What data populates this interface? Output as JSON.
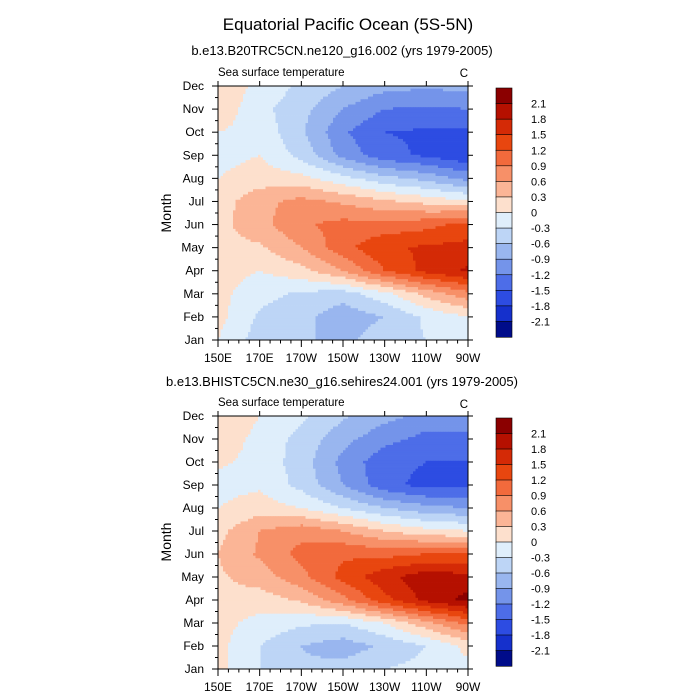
{
  "figure": {
    "title": "Equatorial Pacific Ocean (5S-5N)"
  },
  "chart_data": [
    {
      "type": "heatmap",
      "title": "b.e13.B20TRC5CN.ne120_g16.002 (yrs 1979-2005)",
      "left_label": "Sea surface temperature",
      "units": "C",
      "xlabel": "",
      "ylabel": "Month",
      "x": [
        "150E",
        "170E",
        "170W",
        "150W",
        "130W",
        "110W",
        "90W"
      ],
      "y": [
        "Jan",
        "Feb",
        "Mar",
        "Apr",
        "May",
        "Jun",
        "Jul",
        "Aug",
        "Sep",
        "Oct",
        "Nov",
        "Dec"
      ],
      "z": [
        [
          0.0,
          -0.45,
          -0.55,
          -0.7,
          -0.4,
          -0.3,
          -0.1
        ],
        [
          0.1,
          -0.35,
          -0.5,
          -0.8,
          -0.6,
          -0.25,
          0.0
        ],
        [
          0.1,
          -0.2,
          -0.35,
          -0.45,
          -0.1,
          0.4,
          0.8
        ],
        [
          0.15,
          0.0,
          0.2,
          0.6,
          1.2,
          1.6,
          1.85
        ],
        [
          0.2,
          0.25,
          0.6,
          1.1,
          1.45,
          1.55,
          1.6
        ],
        [
          0.2,
          0.5,
          0.85,
          1.0,
          1.0,
          1.1,
          1.3
        ],
        [
          0.15,
          0.5,
          0.7,
          0.55,
          0.35,
          0.2,
          0.05
        ],
        [
          0.0,
          0.15,
          0.1,
          -0.2,
          -0.5,
          -0.7,
          -1.0
        ],
        [
          -0.1,
          0.0,
          -0.4,
          -1.0,
          -1.4,
          -1.55,
          -1.75
        ],
        [
          0.0,
          -0.1,
          -0.55,
          -1.15,
          -1.5,
          -1.55,
          -1.55
        ],
        [
          0.2,
          -0.2,
          -0.5,
          -0.9,
          -1.2,
          -1.25,
          -1.2
        ],
        [
          0.25,
          -0.1,
          -0.35,
          -0.6,
          -0.8,
          -0.85,
          -0.8
        ]
      ],
      "contour_levels": [
        -2.1,
        -1.8,
        -1.5,
        -1.2,
        -0.9,
        -0.6,
        -0.3,
        0,
        0.3,
        0.6,
        0.9,
        1.2,
        1.5,
        1.8,
        2.1
      ]
    },
    {
      "type": "heatmap",
      "title": "b.e13.BHISTC5CN.ne30_g16.sehires24.001 (yrs 1979-2005)",
      "left_label": "Sea surface temperature",
      "units": "C",
      "xlabel": "",
      "ylabel": "Month",
      "x": [
        "150E",
        "170E",
        "170W",
        "150W",
        "130W",
        "110W",
        "90W"
      ],
      "y": [
        "Jan",
        "Feb",
        "Mar",
        "Apr",
        "May",
        "Jun",
        "Jul",
        "Aug",
        "Sep",
        "Oct",
        "Nov",
        "Dec"
      ],
      "z": [
        [
          0.1,
          -0.3,
          -0.55,
          -0.5,
          -0.3,
          -0.2,
          -0.1
        ],
        [
          0.1,
          -0.3,
          -0.6,
          -0.75,
          -0.55,
          -0.3,
          0.1
        ],
        [
          0.1,
          -0.1,
          -0.25,
          -0.3,
          0.0,
          0.5,
          1.0
        ],
        [
          0.2,
          0.15,
          0.35,
          0.8,
          1.4,
          1.9,
          2.2
        ],
        [
          0.25,
          0.45,
          0.8,
          1.3,
          1.7,
          2.0,
          1.9
        ],
        [
          0.3,
          0.65,
          1.0,
          1.15,
          1.1,
          1.2,
          1.2
        ],
        [
          0.2,
          0.6,
          0.8,
          0.6,
          0.3,
          0.1,
          0.0
        ],
        [
          0.0,
          0.15,
          0.0,
          -0.3,
          -0.6,
          -0.8,
          -0.9
        ],
        [
          -0.1,
          -0.05,
          -0.4,
          -0.9,
          -1.4,
          -1.6,
          -1.6
        ],
        [
          0.05,
          -0.1,
          -0.45,
          -1.0,
          -1.4,
          -1.5,
          -1.5
        ],
        [
          0.2,
          -0.1,
          -0.4,
          -0.8,
          -1.1,
          -1.3,
          -1.3
        ],
        [
          0.3,
          0.0,
          -0.25,
          -0.55,
          -0.8,
          -1.0,
          -1.0
        ]
      ],
      "contour_levels": [
        -2.1,
        -1.8,
        -1.5,
        -1.2,
        -0.9,
        -0.6,
        -0.3,
        0,
        0.3,
        0.6,
        0.9,
        1.2,
        1.5,
        1.8,
        2.1
      ]
    }
  ],
  "colorbar": {
    "labels": [
      "2.1",
      "1.8",
      "1.5",
      "1.2",
      "0.9",
      "0.6",
      "0.3",
      "0",
      "-0.3",
      "-0.6",
      "-0.9",
      "-1.2",
      "-1.5",
      "-1.8",
      "-2.1"
    ],
    "colors": [
      "#8b0000",
      "#b51000",
      "#d42a06",
      "#e8460f",
      "#f26a3c",
      "#f79068",
      "#fbb596",
      "#fde0cd",
      "#dfeefb",
      "#bdd5f6",
      "#99b6ef",
      "#7494ea",
      "#4d6de8",
      "#2d4ce2",
      "#1530cc",
      "#000c8a"
    ]
  },
  "colors": {
    "text": "#000000",
    "frame": "#000000",
    "background": "#ffffff"
  }
}
